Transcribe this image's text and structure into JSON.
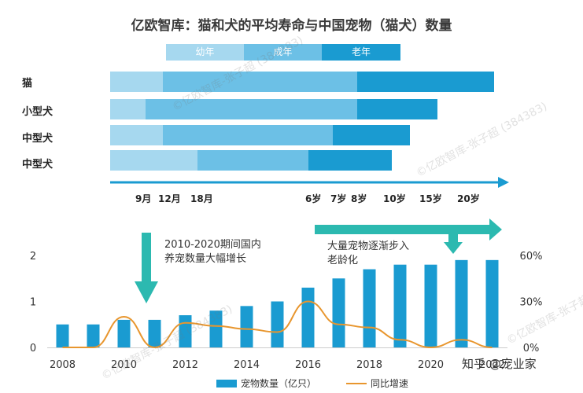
{
  "title": "亿欧智库：猫和犬的平均寿命与中国宠物（猫犬）数量",
  "stage_legend": [
    {
      "label": "幼年",
      "color": "#a6d8ef"
    },
    {
      "label": "成年",
      "color": "#6cc0e6"
    },
    {
      "label": "老年",
      "color": "#1a9bd1"
    }
  ],
  "lifespan_rows": [
    {
      "label": "猫",
      "young_end": 12,
      "adult_end": 8,
      "old_end": 20
    },
    {
      "label": "小型犬",
      "young_end": 10,
      "adult_end": 8,
      "old_end": 15
    },
    {
      "label": "中型犬",
      "young_end": 12,
      "adult_end": 7,
      "old_end": 10
    },
    {
      "label": "中型犬",
      "young_end": 18,
      "adult_end": 6,
      "old_end": 9
    }
  ],
  "age_ticks": [
    "9月",
    "12月",
    "18月",
    "6岁",
    "7岁",
    "8岁",
    "10岁",
    "15岁",
    "20岁"
  ],
  "note_left": [
    "2010-2020期间国内",
    "养宠数量大幅增长"
  ],
  "note_right": [
    "大量宠物逐渐步入",
    "老龄化"
  ],
  "chart_data": {
    "type": "bar",
    "title": "",
    "x": [
      2008,
      2009,
      2010,
      2011,
      2012,
      2013,
      2014,
      2015,
      2016,
      2017,
      2018,
      2019,
      2020,
      2021,
      2022
    ],
    "x_tick_labels": [
      "2008",
      "2010",
      "2012",
      "2014",
      "2016",
      "2018",
      "2020",
      "2022"
    ],
    "series": [
      {
        "name": "宠物数量（亿只）",
        "type": "bar",
        "axis": "left",
        "color": "#1a9bd1",
        "values": [
          0.5,
          0.5,
          0.6,
          0.6,
          0.7,
          0.8,
          0.9,
          1.0,
          1.3,
          1.5,
          1.7,
          1.8,
          1.8,
          1.9,
          1.9
        ]
      },
      {
        "name": "同比增速",
        "type": "line",
        "axis": "right",
        "color": "#e8962e",
        "values": [
          0,
          0,
          20,
          0,
          16,
          14,
          12,
          10,
          30,
          15,
          13,
          5,
          0,
          5,
          0
        ]
      }
    ],
    "y_left": {
      "ylim": [
        0,
        2
      ],
      "ticks": [
        "0",
        "1",
        "2"
      ]
    },
    "y_right": {
      "ylim": [
        0,
        60
      ],
      "ticks": [
        "0%",
        "30%",
        "60%"
      ]
    }
  },
  "watermarks": [
    "©亿欧智库-张子超 (384383)"
  ],
  "brand": "知乎 @宠业家"
}
